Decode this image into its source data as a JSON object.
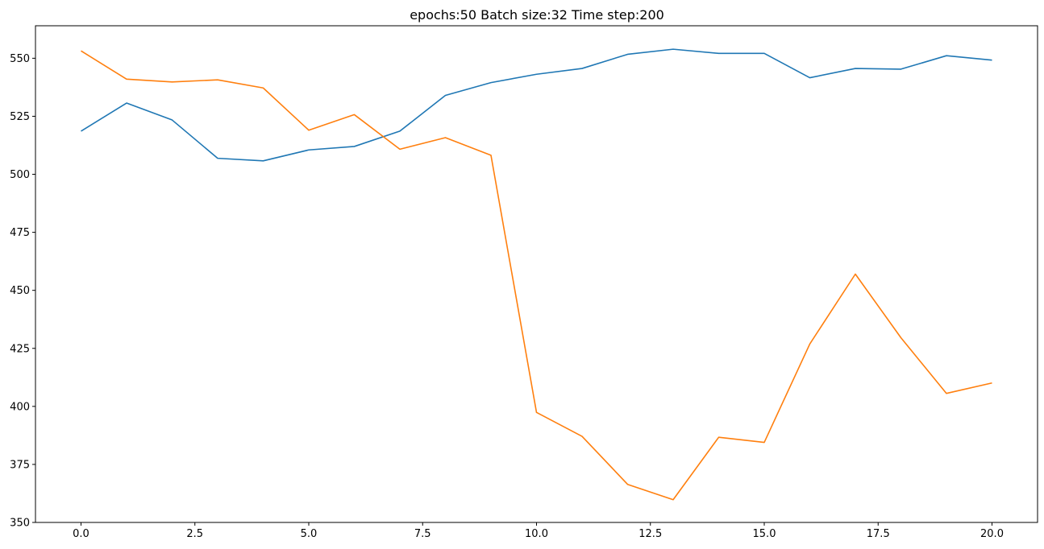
{
  "chart_data": {
    "type": "line",
    "title": "epochs:50   Batch size:32    Time step:200",
    "xlabel": "",
    "ylabel": "",
    "xlim": [
      -1,
      21
    ],
    "ylim": [
      350,
      564
    ],
    "xticks": [
      0.0,
      2.5,
      5.0,
      7.5,
      10.0,
      12.5,
      15.0,
      17.5,
      20.0
    ],
    "xtick_labels": [
      "0.0",
      "2.5",
      "5.0",
      "7.5",
      "10.0",
      "12.5",
      "15.0",
      "17.5",
      "20.0"
    ],
    "yticks": [
      350,
      375,
      400,
      425,
      450,
      475,
      500,
      525,
      550
    ],
    "ytick_labels": [
      "350",
      "375",
      "400",
      "425",
      "450",
      "475",
      "500",
      "525",
      "550"
    ],
    "grid": false,
    "x": [
      0,
      1,
      2,
      3,
      4,
      5,
      6,
      7,
      8,
      9,
      10,
      11,
      12,
      13,
      14,
      15,
      16,
      17,
      18,
      19,
      20
    ],
    "series": [
      {
        "color": "#1f77b4",
        "values": [
          518.6,
          530.7,
          523.4,
          506.9,
          505.8,
          510.5,
          512.0,
          518.6,
          534.0,
          539.5,
          543.1,
          545.6,
          551.7,
          553.9,
          552.1,
          552.1,
          541.6,
          545.6,
          545.3,
          551.1,
          549.2
        ]
      },
      {
        "color": "#ff7f0e",
        "values": [
          553.2,
          541.0,
          539.8,
          540.7,
          537.2,
          519.0,
          525.7,
          510.8,
          515.8,
          508.2,
          397.4,
          387.1,
          366.4,
          359.8,
          386.7,
          384.5,
          426.9,
          457.0,
          429.6,
          405.6,
          410.1
        ]
      }
    ]
  }
}
